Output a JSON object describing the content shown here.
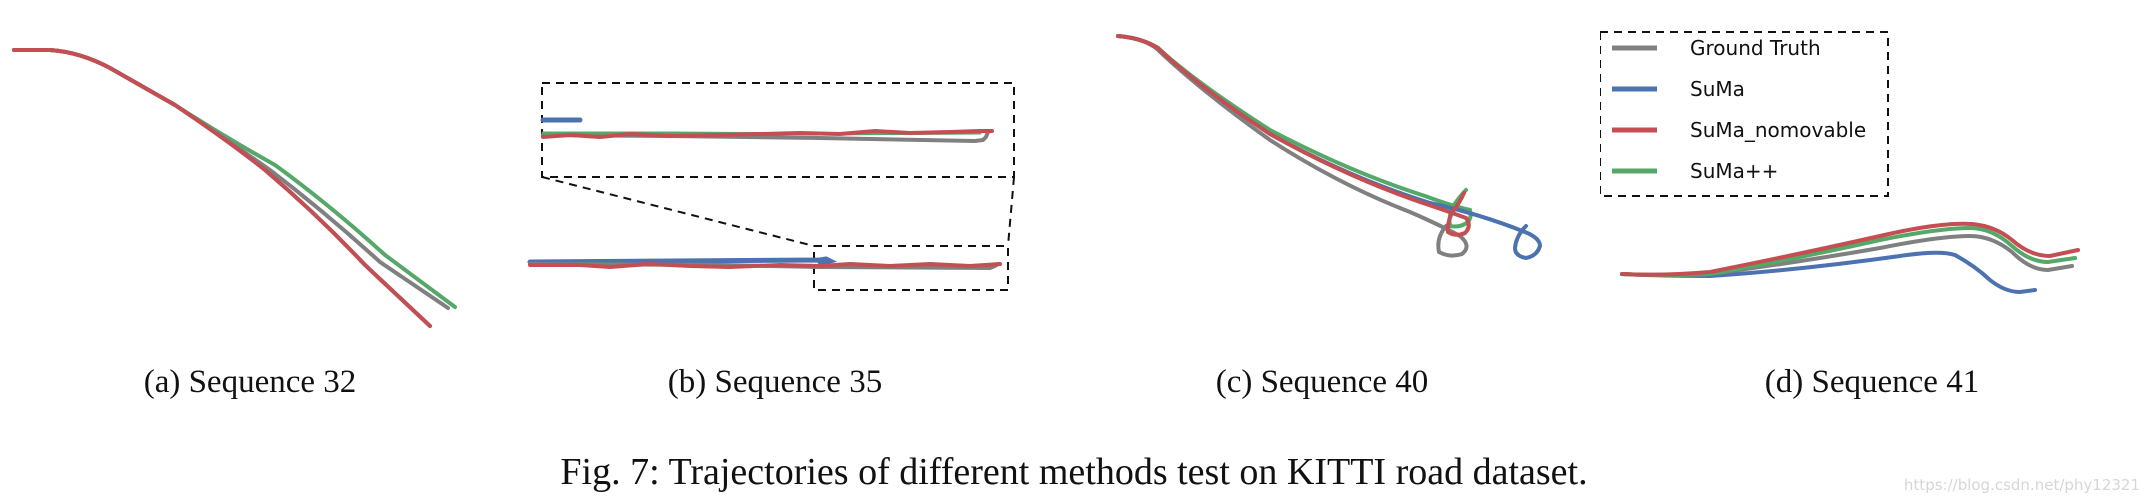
{
  "colors": {
    "ground_truth": "#808080",
    "suma": "#4c72b0",
    "suma_nomovable": "#c44e52",
    "suma_pp": "#55a868"
  },
  "legend": {
    "items": [
      {
        "label": "Ground Truth",
        "color": "#808080"
      },
      {
        "label": "SuMa",
        "color": "#4c72b0"
      },
      {
        "label": "SuMa_nomovable",
        "color": "#c44e52"
      },
      {
        "label": "SuMa++",
        "color": "#55a868"
      }
    ]
  },
  "subfigures": [
    {
      "caption": "(a)  Sequence 32"
    },
    {
      "caption": "(b)  Sequence 35"
    },
    {
      "caption": "(c)  Sequence 40"
    },
    {
      "caption": "(d)  Sequence 41"
    }
  ],
  "caption": "Fig. 7: Trajectories of different methods test on KITTI road dataset.",
  "watermark": "https://blog.csdn.net/phy12321"
}
